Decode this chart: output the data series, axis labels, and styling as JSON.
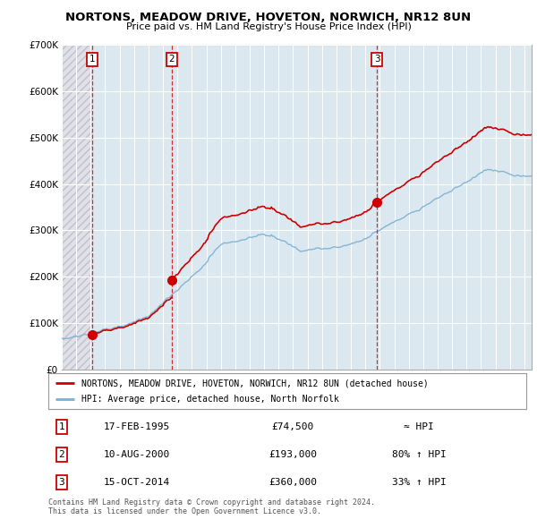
{
  "title": "NORTONS, MEADOW DRIVE, HOVETON, NORWICH, NR12 8UN",
  "subtitle": "Price paid vs. HM Land Registry's House Price Index (HPI)",
  "legend_label_red": "NORTONS, MEADOW DRIVE, HOVETON, NORWICH, NR12 8UN (detached house)",
  "legend_label_blue": "HPI: Average price, detached house, North Norfolk",
  "transactions": [
    {
      "num": 1,
      "date": "17-FEB-1995",
      "price": 74500,
      "year": 1995.12,
      "hpi_note": "≈ HPI"
    },
    {
      "num": 2,
      "date": "10-AUG-2000",
      "price": 193000,
      "year": 2000.6,
      "hpi_note": "80% ↑ HPI"
    },
    {
      "num": 3,
      "date": "15-OCT-2014",
      "price": 360000,
      "year": 2014.79,
      "hpi_note": "33% ↑ HPI"
    }
  ],
  "footer_line1": "Contains HM Land Registry data © Crown copyright and database right 2024.",
  "footer_line2": "This data is licensed under the Open Government Licence v3.0.",
  "ylim": [
    0,
    700000
  ],
  "xlim_start": 1993,
  "xlim_end": 2025.5,
  "grid_color": "#c8d8e8",
  "red_color": "#cc0000",
  "blue_color": "#7ab0d4",
  "bg_main": "#dce8f0",
  "bg_hatch": "#e8e8e8"
}
